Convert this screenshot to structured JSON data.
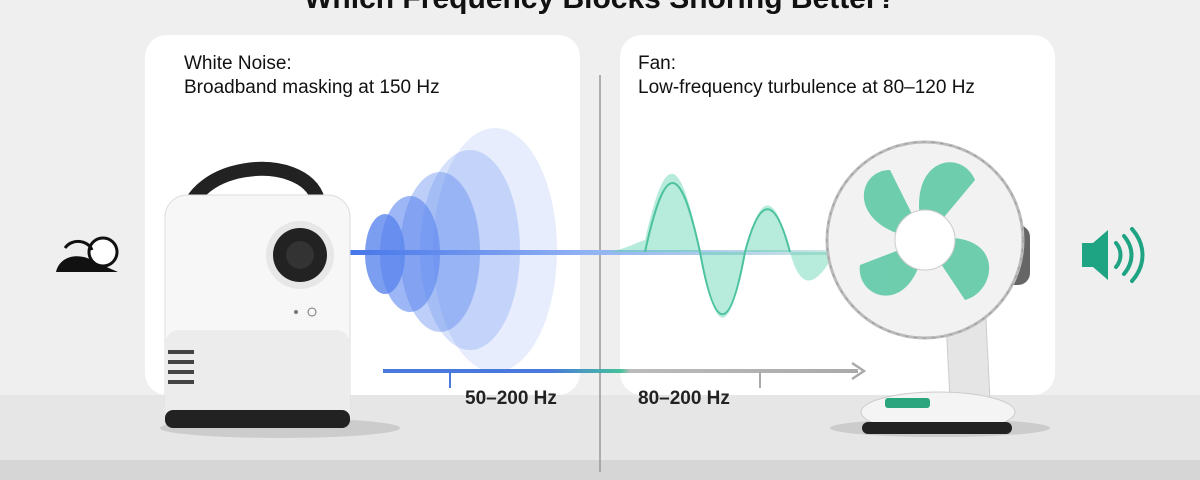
{
  "title": "Which Frequency Blocks Snoring Better?",
  "panels": [
    {
      "heading": "White Noise:",
      "subheading": "Broadband masking at 150 Hz",
      "range_label": "50–200 Hz"
    },
    {
      "heading": "Fan:",
      "subheading": "Low-frequency turbulence at 80–120 Hz",
      "range_label": "80–200 Hz"
    }
  ]
}
